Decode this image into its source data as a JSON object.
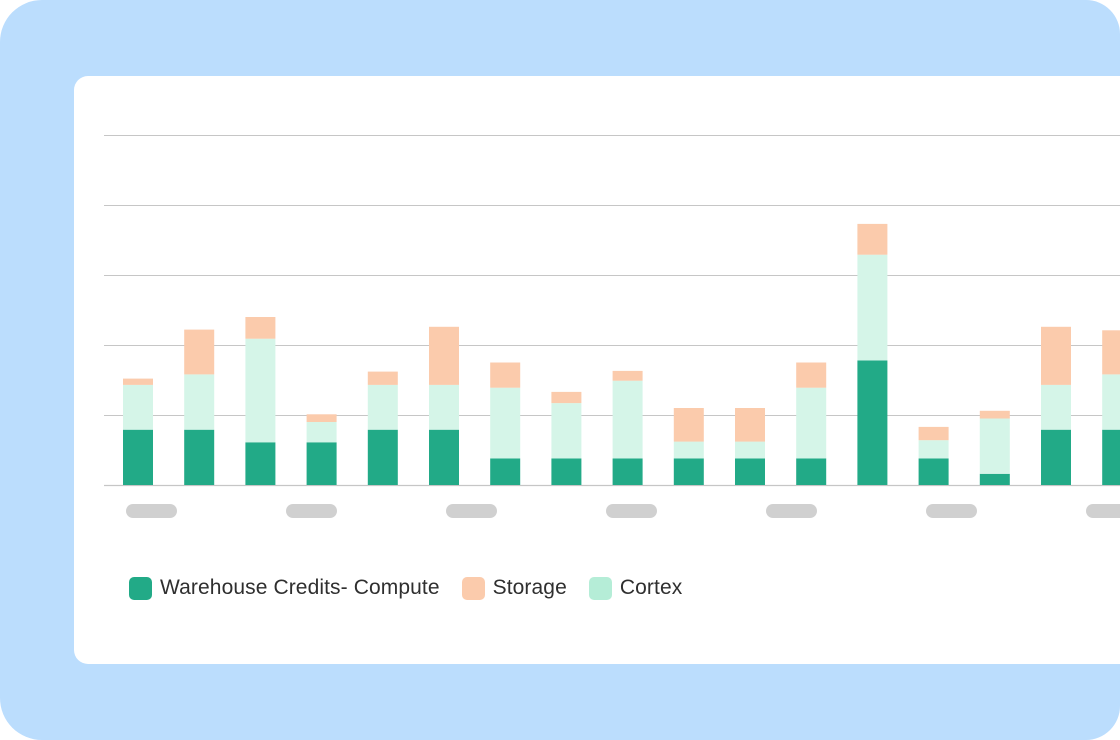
{
  "colors": {
    "frame_bg": "#BBDDFD",
    "card_bg": "#FFFFFF",
    "gridline": "#C6C6C6",
    "tick_placeholder": "#D0D0D0"
  },
  "legend": {
    "items": [
      {
        "label": "Warehouse Credits- Compute",
        "color": "#22AA87"
      },
      {
        "label": "Storage",
        "color": "#FBCBAC"
      },
      {
        "label": "Cortex",
        "color": "#B5EDD7"
      }
    ]
  },
  "chart_data": {
    "type": "bar",
    "stacked": true,
    "ylim": [
      0,
      5
    ],
    "gridlines": 5,
    "grid": true,
    "legend_position": "bottom-left",
    "x_tick_labels_redacted": true,
    "series": [
      {
        "name": "Warehouse Credits- Compute",
        "color": "#22AA87",
        "values": [
          0.79,
          0.79,
          0.61,
          0.61,
          0.79,
          0.79,
          0.38,
          0.38,
          0.38,
          0.38,
          0.38,
          0.38,
          1.78,
          0.38,
          0.16,
          0.79,
          0.79
        ]
      },
      {
        "name": "Cortex",
        "color": "#D5F5E8",
        "values": [
          0.64,
          0.79,
          1.48,
          0.29,
          0.64,
          0.64,
          1.01,
          0.79,
          1.11,
          0.24,
          0.24,
          1.01,
          1.51,
          0.26,
          0.79,
          0.64,
          0.79
        ]
      },
      {
        "name": "Storage",
        "color": "#FBCBAC",
        "values": [
          0.09,
          0.64,
          0.31,
          0.11,
          0.19,
          0.83,
          0.36,
          0.16,
          0.14,
          0.48,
          0.48,
          0.36,
          0.44,
          0.19,
          0.11,
          0.83,
          0.63
        ]
      }
    ]
  }
}
